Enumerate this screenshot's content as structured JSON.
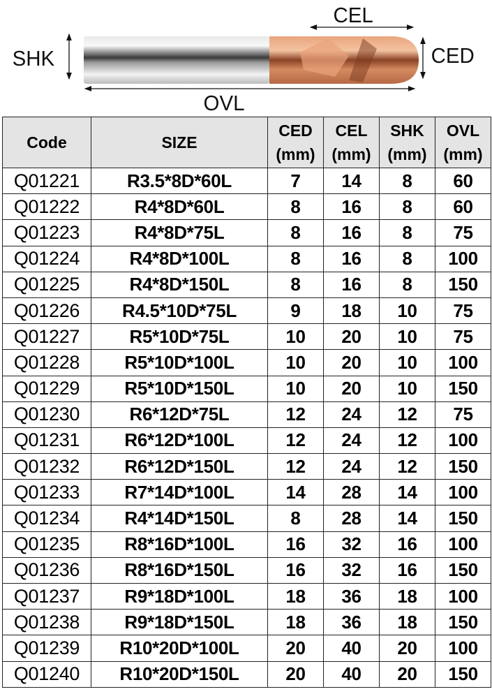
{
  "diagram": {
    "labels": {
      "cel": "CEL",
      "ced": "CED",
      "shk": "SHK",
      "ovl": "OVL"
    }
  },
  "colors": {
    "header_bg": "#e4e4e4",
    "coating": "#d9895e",
    "shank": "#c9c9c9"
  },
  "table": {
    "headers": [
      {
        "line1": "Code",
        "line2": ""
      },
      {
        "line1": "SIZE",
        "line2": ""
      },
      {
        "line1": "CED",
        "line2": "(mm)"
      },
      {
        "line1": "CEL",
        "line2": "(mm)"
      },
      {
        "line1": "SHK",
        "line2": "(mm)"
      },
      {
        "line1": "OVL",
        "line2": "(mm)"
      }
    ],
    "rows": [
      [
        "Q01221",
        "R3.5*8D*60L",
        "7",
        "14",
        "8",
        "60"
      ],
      [
        "Q01222",
        "R4*8D*60L",
        "8",
        "16",
        "8",
        "60"
      ],
      [
        "Q01223",
        "R4*8D*75L",
        "8",
        "16",
        "8",
        "75"
      ],
      [
        "Q01224",
        "R4*8D*100L",
        "8",
        "16",
        "8",
        "100"
      ],
      [
        "Q01225",
        "R4*8D*150L",
        "8",
        "16",
        "8",
        "150"
      ],
      [
        "Q01226",
        "R4.5*10D*75L",
        "9",
        "18",
        "10",
        "75"
      ],
      [
        "Q01227",
        "R5*10D*75L",
        "10",
        "20",
        "10",
        "75"
      ],
      [
        "Q01228",
        "R5*10D*100L",
        "10",
        "20",
        "10",
        "100"
      ],
      [
        "Q01229",
        "R5*10D*150L",
        "10",
        "20",
        "10",
        "150"
      ],
      [
        "Q01230",
        "R6*12D*75L",
        "12",
        "24",
        "12",
        "75"
      ],
      [
        "Q01231",
        "R6*12D*100L",
        "12",
        "24",
        "12",
        "100"
      ],
      [
        "Q01232",
        "R6*12D*150L",
        "12",
        "24",
        "12",
        "150"
      ],
      [
        "Q01233",
        "R7*14D*100L",
        "14",
        "28",
        "14",
        "100"
      ],
      [
        "Q01234",
        "R4*14D*150L",
        "8",
        "28",
        "14",
        "150"
      ],
      [
        "Q01235",
        "R8*16D*100L",
        "16",
        "32",
        "16",
        "100"
      ],
      [
        "Q01236",
        "R8*16D*150L",
        "16",
        "32",
        "16",
        "150"
      ],
      [
        "Q01237",
        "R9*18D*100L",
        "18",
        "36",
        "18",
        "100"
      ],
      [
        "Q01238",
        "R9*18D*150L",
        "18",
        "36",
        "18",
        "150"
      ],
      [
        "Q01239",
        "R10*20D*100L",
        "20",
        "40",
        "20",
        "100"
      ],
      [
        "Q01240",
        "R10*20D*150L",
        "20",
        "40",
        "20",
        "150"
      ]
    ]
  }
}
